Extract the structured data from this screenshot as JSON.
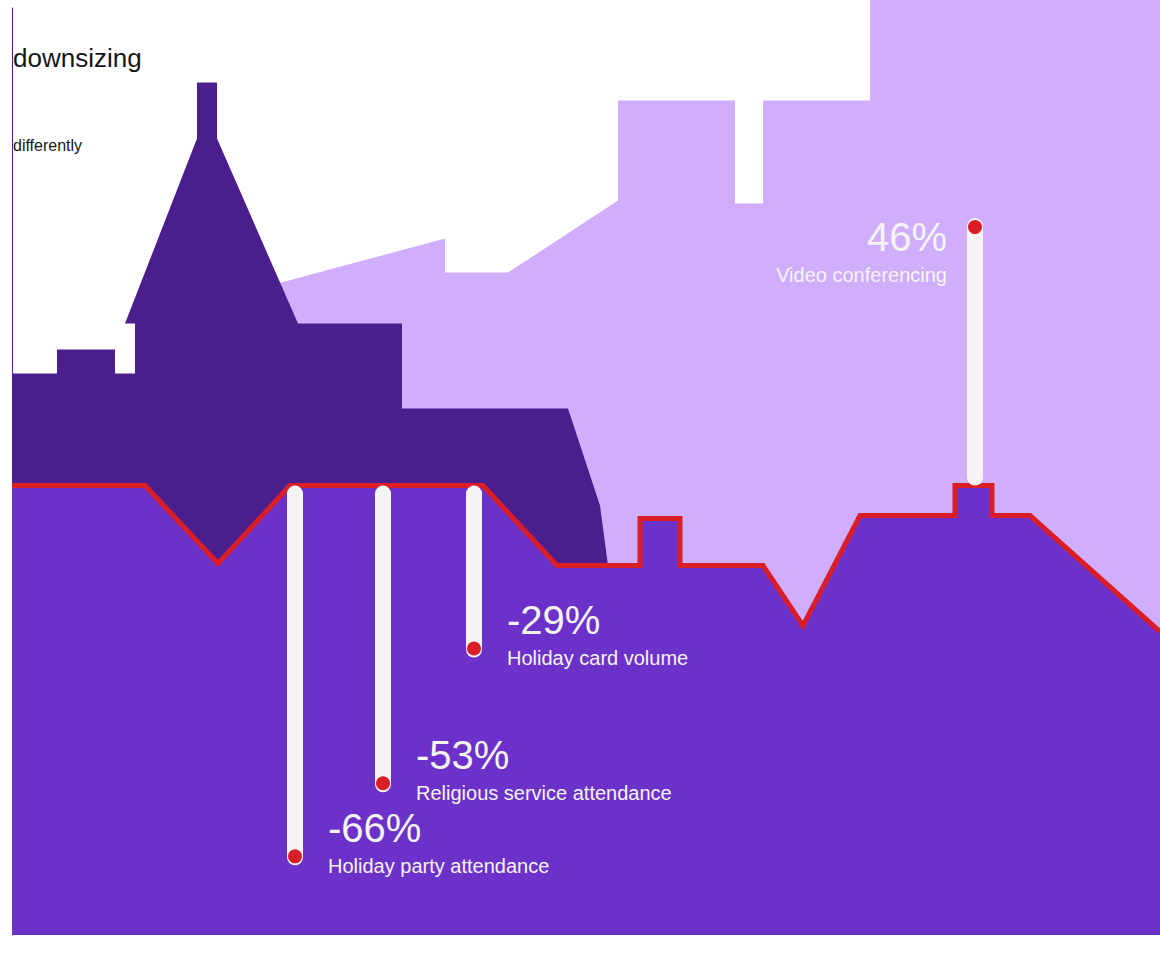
{
  "chart_data": {
    "type": "lollipop",
    "title": "downsizing",
    "subtitle": "differently",
    "categories": [
      "Holiday party attendance",
      "Religious service attendance",
      "Holiday card volume",
      "Video conferencing"
    ],
    "values": [
      -66,
      -53,
      -29,
      46
    ],
    "value_labels": [
      "-66%",
      "-53%",
      "-29%",
      "46%"
    ],
    "ylim": [
      -80,
      85
    ],
    "tick_labels": false,
    "data_labels": true,
    "color": "#da1e28"
  }
}
